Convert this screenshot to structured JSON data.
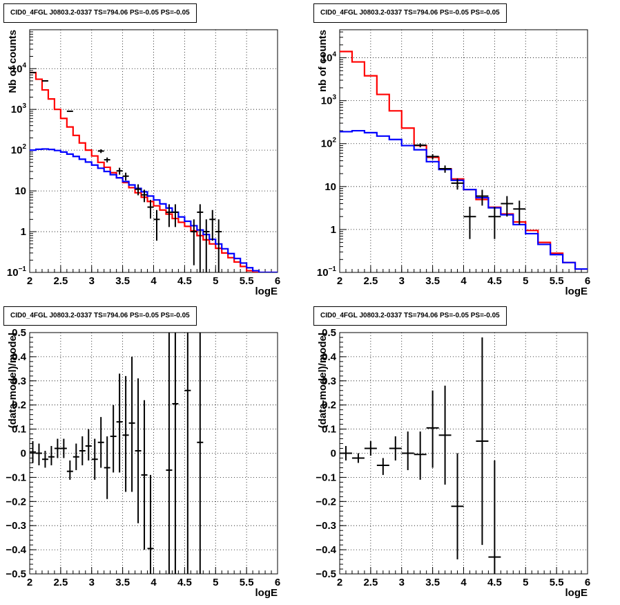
{
  "chart_data": [
    {
      "type": "line",
      "title": "CID0_4FGL J0803.2-0337 TS=794.06 PS=-0.05 PS=-0.05",
      "xlabel": "logE",
      "ylabel": "Nb of counts",
      "xlim": [
        2,
        6
      ],
      "ylim": [
        0.1,
        90000
      ],
      "log_y": true,
      "grid": true,
      "x_ticks": [
        "2",
        "2.5",
        "3",
        "3.5",
        "4",
        "4.5",
        "5",
        "5.5",
        "6"
      ],
      "y_ticks": [
        {
          "value": 0.1,
          "base": "10",
          "exp": "−1"
        },
        {
          "value": 1,
          "label": "1"
        },
        {
          "value": 10,
          "label": "10"
        },
        {
          "value": 100,
          "base": "10",
          "exp": "2"
        },
        {
          "value": 1000,
          "base": "10",
          "exp": "3"
        },
        {
          "value": 10000,
          "base": "10",
          "exp": "4"
        }
      ],
      "bin_edges": [
        2.0,
        2.1,
        2.2,
        2.3,
        2.4,
        2.5,
        2.6,
        2.7,
        2.8,
        2.9,
        3.0,
        3.1,
        3.2,
        3.3,
        3.4,
        3.5,
        3.6,
        3.7,
        3.8,
        3.9,
        4.0,
        4.1,
        4.2,
        4.3,
        4.4,
        4.5,
        4.6,
        4.7,
        4.8,
        4.9,
        5.0,
        5.1,
        5.2,
        5.3,
        5.4,
        5.5,
        5.6,
        5.7,
        5.8,
        5.9,
        6.0
      ],
      "series": [
        {
          "color": "#ff0000",
          "values": [
            8000,
            5500,
            3000,
            1800,
            1000,
            600,
            370,
            230,
            150,
            100,
            72,
            50,
            38,
            28,
            21,
            16,
            12,
            9,
            7,
            5.5,
            4.3,
            3.4,
            2.7,
            2.1,
            1.7,
            1.35,
            1.05,
            0.8,
            0.63,
            0.5,
            0.39,
            0.3,
            0.23,
            0.18,
            0.14,
            0.11,
            0.1,
            0.1,
            0.1,
            0.1
          ]
        },
        {
          "color": "#0000ff",
          "values": [
            100,
            105,
            107,
            104,
            98,
            90,
            80,
            70,
            60,
            51,
            43,
            36,
            30,
            25,
            21,
            17,
            14,
            11.5,
            9.5,
            7.5,
            6,
            4.8,
            3.8,
            3,
            2.3,
            1.8,
            1.4,
            1.1,
            0.85,
            0.65,
            0.5,
            0.38,
            0.29,
            0.22,
            0.17,
            0.13,
            0.11,
            0.1,
            0.1,
            0.1
          ]
        }
      ],
      "points": [
        {
          "x": 2.05,
          "y": 8000,
          "ylo": 7900,
          "yhi": 8100
        },
        {
          "x": 2.25,
          "y": 5000,
          "ylo": 4900,
          "yhi": 5100
        },
        {
          "x": 2.65,
          "y": 900,
          "ylo": 870,
          "yhi": 930
        },
        {
          "x": 3.15,
          "y": 95,
          "ylo": 85,
          "yhi": 105
        },
        {
          "x": 3.25,
          "y": 58,
          "ylo": 50,
          "yhi": 66
        },
        {
          "x": 3.45,
          "y": 31,
          "ylo": 25,
          "yhi": 37
        },
        {
          "x": 3.55,
          "y": 23,
          "ylo": 18,
          "yhi": 28
        },
        {
          "x": 3.75,
          "y": 11,
          "ylo": 7.8,
          "yhi": 14.5
        },
        {
          "x": 3.85,
          "y": 8,
          "ylo": 5.3,
          "yhi": 10.7
        },
        {
          "x": 3.95,
          "y": 4,
          "ylo": 2.1,
          "yhi": 6
        },
        {
          "x": 4.05,
          "y": 2,
          "ylo": 0.6,
          "yhi": 3.4
        },
        {
          "x": 4.25,
          "y": 3,
          "ylo": 1.3,
          "yhi": 4.7
        },
        {
          "x": 4.35,
          "y": 3,
          "ylo": 1.3,
          "yhi": 4.7
        },
        {
          "x": 4.65,
          "y": 1,
          "ylo": 0.15,
          "yhi": 2
        },
        {
          "x": 4.75,
          "y": 3,
          "ylo": 0.1,
          "yhi": 4.7
        },
        {
          "x": 4.85,
          "y": 1,
          "ylo": 0.1,
          "yhi": 2
        },
        {
          "x": 4.95,
          "y": 2,
          "ylo": 0.6,
          "yhi": 3.4
        },
        {
          "x": 5.05,
          "y": 1,
          "ylo": 0.1,
          "yhi": 2
        }
      ]
    },
    {
      "type": "line",
      "title": "CID0_4FGL J0803.2-0337 TS=794.06 PS=-0.05 PS=-0.05",
      "xlabel": "logE",
      "ylabel": "nb of counts",
      "xlim": [
        2,
        6
      ],
      "ylim": [
        0.1,
        45000
      ],
      "log_y": true,
      "grid": true,
      "x_ticks": [
        "2",
        "2.5",
        "3",
        "3.5",
        "4",
        "4.5",
        "5",
        "5.5",
        "6"
      ],
      "y_ticks": [
        {
          "value": 0.1,
          "base": "10",
          "exp": "−1"
        },
        {
          "value": 1,
          "label": "1"
        },
        {
          "value": 10,
          "label": "10"
        },
        {
          "value": 100,
          "base": "10",
          "exp": "2"
        },
        {
          "value": 1000,
          "base": "10",
          "exp": "3"
        },
        {
          "value": 10000,
          "base": "10",
          "exp": "4"
        }
      ],
      "bin_edges": [
        2.0,
        2.2,
        2.4,
        2.6,
        2.8,
        3.0,
        3.2,
        3.4,
        3.6,
        3.8,
        4.0,
        4.2,
        4.4,
        4.6,
        4.8,
        5.0,
        5.2,
        5.4,
        5.6,
        5.8,
        6.0
      ],
      "series": [
        {
          "color": "#ff0000",
          "values": [
            14000,
            8000,
            3800,
            1400,
            580,
            230,
            90,
            48,
            26,
            15,
            8.5,
            5,
            3.3,
            2.3,
            1.5,
            0.95,
            0.5,
            0.28,
            0.17,
            0.12
          ]
        },
        {
          "color": "#0000ff",
          "values": [
            190,
            200,
            180,
            150,
            125,
            90,
            72,
            38,
            25,
            14,
            8.5,
            5.5,
            3.2,
            2.2,
            1.3,
            0.8,
            0.45,
            0.26,
            0.17,
            0.12
          ]
        }
      ],
      "points": [
        {
          "x": 3.3,
          "y": 92,
          "ylo": 82,
          "yhi": 102
        },
        {
          "x": 3.5,
          "y": 50,
          "ylo": 43,
          "yhi": 57
        },
        {
          "x": 3.7,
          "y": 26,
          "ylo": 21,
          "yhi": 31
        },
        {
          "x": 3.9,
          "y": 12,
          "ylo": 8.5,
          "yhi": 15.5
        },
        {
          "x": 4.1,
          "y": 2,
          "ylo": 0.6,
          "yhi": 3.4
        },
        {
          "x": 4.3,
          "y": 6,
          "ylo": 3.6,
          "yhi": 8.4
        },
        {
          "x": 4.5,
          "y": 2,
          "ylo": 0.6,
          "yhi": 3.4
        },
        {
          "x": 4.7,
          "y": 4,
          "ylo": 2,
          "yhi": 6
        },
        {
          "x": 4.9,
          "y": 3,
          "ylo": 1.3,
          "yhi": 4.7
        }
      ]
    },
    {
      "type": "scatter",
      "title": "CID0_4FGL J0803.2-0337 TS=794.06 PS=-0.05 PS=-0.05",
      "xlabel": "logE",
      "ylabel": "(data-model)/model",
      "xlim": [
        2,
        6
      ],
      "ylim": [
        -0.5,
        0.5
      ],
      "grid": true,
      "x_ticks": [
        "2",
        "2.5",
        "3",
        "3.5",
        "4",
        "4.5",
        "5",
        "5.5",
        "6"
      ],
      "y_ticks": [
        "−0.5",
        "−0.4",
        "−0.3",
        "−0.2",
        "−0.1",
        "0",
        "0.1",
        "0.2",
        "0.3",
        "0.4",
        "0.5"
      ],
      "half_width": 0.05,
      "points": [
        {
          "x": 2.05,
          "y": 0.005,
          "ylo": -0.04,
          "yhi": 0.05
        },
        {
          "x": 2.15,
          "y": 0.0,
          "ylo": -0.05,
          "yhi": 0.04
        },
        {
          "x": 2.25,
          "y": -0.025,
          "ylo": -0.06,
          "yhi": 0.01
        },
        {
          "x": 2.35,
          "y": -0.015,
          "ylo": -0.05,
          "yhi": 0.03
        },
        {
          "x": 2.45,
          "y": 0.02,
          "ylo": -0.02,
          "yhi": 0.06
        },
        {
          "x": 2.55,
          "y": 0.02,
          "ylo": -0.02,
          "yhi": 0.06
        },
        {
          "x": 2.65,
          "y": -0.075,
          "ylo": -0.11,
          "yhi": -0.03
        },
        {
          "x": 2.75,
          "y": -0.015,
          "ylo": -0.07,
          "yhi": 0.04
        },
        {
          "x": 2.85,
          "y": 0.01,
          "ylo": -0.05,
          "yhi": 0.07
        },
        {
          "x": 2.95,
          "y": 0.03,
          "ylo": -0.03,
          "yhi": 0.1
        },
        {
          "x": 3.05,
          "y": -0.025,
          "ylo": -0.11,
          "yhi": 0.06
        },
        {
          "x": 3.15,
          "y": 0.045,
          "ylo": -0.06,
          "yhi": 0.15
        },
        {
          "x": 3.25,
          "y": -0.06,
          "ylo": -0.19,
          "yhi": 0.07
        },
        {
          "x": 3.35,
          "y": 0.07,
          "ylo": -0.08,
          "yhi": 0.2
        },
        {
          "x": 3.45,
          "y": 0.13,
          "ylo": -0.08,
          "yhi": 0.33
        },
        {
          "x": 3.55,
          "y": 0.075,
          "ylo": -0.16,
          "yhi": 0.32
        },
        {
          "x": 3.65,
          "y": 0.125,
          "ylo": -0.16,
          "yhi": 0.4
        },
        {
          "x": 3.75,
          "y": 0.01,
          "ylo": -0.29,
          "yhi": 0.31
        },
        {
          "x": 3.85,
          "y": -0.09,
          "ylo": -0.4,
          "yhi": 0.22
        },
        {
          "x": 3.95,
          "y": -0.395,
          "ylo": -0.5,
          "yhi": -0.09
        },
        {
          "x": 4.25,
          "y": -0.07,
          "ylo": -0.5,
          "yhi": 0.5
        },
        {
          "x": 4.35,
          "y": 0.205,
          "ylo": -0.5,
          "yhi": 0.5
        },
        {
          "x": 4.55,
          "y": 0.26,
          "ylo": -0.5,
          "yhi": 0.5
        },
        {
          "x": 4.75,
          "y": 0.045,
          "ylo": -0.5,
          "yhi": 0.5
        }
      ]
    },
    {
      "type": "scatter",
      "title": "CID0_4FGL J0803.2-0337 TS=794.06 PS=-0.05 PS=-0.05",
      "xlabel": "logE",
      "ylabel": "(data-model)/model",
      "xlim": [
        2,
        6
      ],
      "ylim": [
        -0.5,
        0.5
      ],
      "grid": true,
      "x_ticks": [
        "2",
        "2.5",
        "3",
        "3.5",
        "4",
        "4.5",
        "5",
        "5.5",
        "6"
      ],
      "y_ticks": [
        "−0.5",
        "−0.4",
        "−0.3",
        "−0.2",
        "−0.1",
        "0",
        "0.1",
        "0.2",
        "0.3",
        "0.4",
        "0.5"
      ],
      "half_width": 0.1,
      "points": [
        {
          "x": 2.1,
          "y": 0.0,
          "ylo": -0.03,
          "yhi": 0.03
        },
        {
          "x": 2.3,
          "y": -0.02,
          "ylo": -0.04,
          "yhi": 0.0
        },
        {
          "x": 2.5,
          "y": 0.02,
          "ylo": -0.01,
          "yhi": 0.05
        },
        {
          "x": 2.7,
          "y": -0.05,
          "ylo": -0.09,
          "yhi": -0.02
        },
        {
          "x": 2.9,
          "y": 0.02,
          "ylo": -0.03,
          "yhi": 0.07
        },
        {
          "x": 3.1,
          "y": 0.0,
          "ylo": -0.07,
          "yhi": 0.09
        },
        {
          "x": 3.3,
          "y": -0.005,
          "ylo": -0.11,
          "yhi": 0.09
        },
        {
          "x": 3.5,
          "y": 0.105,
          "ylo": -0.06,
          "yhi": 0.26
        },
        {
          "x": 3.7,
          "y": 0.075,
          "ylo": -0.13,
          "yhi": 0.28
        },
        {
          "x": 3.9,
          "y": -0.22,
          "ylo": -0.44,
          "yhi": 0.0
        },
        {
          "x": 4.3,
          "y": 0.05,
          "ylo": -0.38,
          "yhi": 0.48
        },
        {
          "x": 4.5,
          "y": -0.43,
          "ylo": -0.5,
          "yhi": -0.03
        }
      ]
    }
  ]
}
